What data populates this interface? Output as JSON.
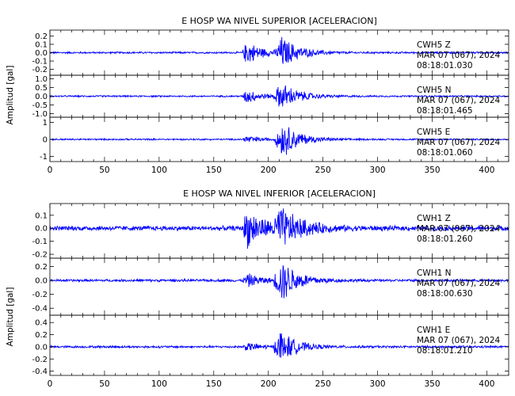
{
  "figure": {
    "ylabel": "Amplitud [gal]",
    "trace_color": "#0000ff"
  },
  "chart_data": [
    {
      "type": "line",
      "title": "E HOSP WA NIVEL SUPERIOR [ACELERACION]",
      "ylabel": "Amplitud [gal]",
      "xlim": [
        0,
        420
      ],
      "x_ticks": [
        0,
        50,
        100,
        150,
        200,
        250,
        300,
        350,
        400
      ],
      "panels": [
        {
          "name": "CWH5 Z",
          "station": "CWH5",
          "component": "Z",
          "date_label": "MAR 07 (067), 2024",
          "time_label": "08:18:01.030",
          "ylim": [
            -0.27,
            0.27
          ],
          "y_ticks": [
            0.2,
            0.1,
            0.0,
            -0.1,
            -0.2
          ],
          "y_tick_labels": [
            "0.2",
            "0.1",
            "0.0",
            "-0.1",
            "-0.2"
          ],
          "noise_amp": 0.012,
          "bursts": [
            {
              "t0": 176,
              "peak": 180,
              "decay": 14,
              "amp": 0.16
            },
            {
              "t0": 206,
              "peak": 212,
              "decay": 16,
              "amp": 0.2
            }
          ]
        },
        {
          "name": "CWH5 N",
          "station": "CWH5",
          "component": "N",
          "date_label": "MAR 07 (067), 2024",
          "time_label": "08:18:01.465",
          "ylim": [
            -1.2,
            1.2
          ],
          "y_ticks": [
            1.0,
            0.5,
            0.0,
            -0.5,
            -1.0
          ],
          "y_tick_labels": [
            "1.0",
            "0.5",
            "0.0",
            "-0.5",
            "-1.0"
          ],
          "noise_amp": 0.05,
          "bursts": [
            {
              "t0": 176,
              "peak": 180,
              "decay": 13,
              "amp": 0.45
            },
            {
              "t0": 204,
              "peak": 212,
              "decay": 16,
              "amp": 0.85
            }
          ]
        },
        {
          "name": "CWH5 E",
          "station": "CWH5",
          "component": "E",
          "date_label": "MAR 07 (067), 2024",
          "time_label": "08:18:01.060",
          "ylim": [
            -1.3,
            1.3
          ],
          "y_ticks": [
            1,
            0,
            -1
          ],
          "y_tick_labels": [
            "1",
            "0",
            "-1"
          ],
          "noise_amp": 0.05,
          "bursts": [
            {
              "t0": 176,
              "peak": 180,
              "decay": 12,
              "amp": 0.25
            },
            {
              "t0": 205,
              "peak": 213,
              "decay": 15,
              "amp": 1.15
            }
          ]
        }
      ]
    },
    {
      "type": "line",
      "title": "E HOSP WA NIVEL INFERIOR [ACELERACION]",
      "ylabel": "Amplitud [gal]",
      "xlim": [
        0,
        420
      ],
      "x_ticks": [
        0,
        50,
        100,
        150,
        200,
        250,
        300,
        350,
        400
      ],
      "panels": [
        {
          "name": "CWH1 Z",
          "station": "CWH1",
          "component": "Z",
          "date_label": "MAR 07 (067), 2024",
          "time_label": "08:18:01.260",
          "ylim": [
            -0.23,
            0.19
          ],
          "y_ticks": [
            0.1,
            0.0,
            -0.1,
            -0.2
          ],
          "y_tick_labels": [
            "0.1",
            "0.0",
            "-0.1",
            "-0.2"
          ],
          "noise_amp": 0.02,
          "bursts": [
            {
              "t0": 176,
              "peak": 180,
              "decay": 18,
              "amp": 0.16
            },
            {
              "t0": 203,
              "peak": 211,
              "decay": 20,
              "amp": 0.15
            }
          ]
        },
        {
          "name": "CWH1 N",
          "station": "CWH1",
          "component": "N",
          "date_label": "MAR 07 (067), 2024",
          "time_label": "08:18:00.630",
          "ylim": [
            -0.5,
            0.32
          ],
          "y_ticks": [
            0.2,
            0.0,
            -0.2,
            -0.4
          ],
          "y_tick_labels": [
            "0.2",
            "0.0",
            "-0.2",
            "-0.4"
          ],
          "noise_amp": 0.02,
          "bursts": [
            {
              "t0": 176,
              "peak": 181,
              "decay": 14,
              "amp": 0.1
            },
            {
              "t0": 204,
              "peak": 212,
              "decay": 16,
              "amp": 0.33
            }
          ]
        },
        {
          "name": "CWH1 E",
          "station": "CWH1",
          "component": "E",
          "date_label": "MAR 07 (067), 2024",
          "time_label": "08:18:01.210",
          "ylim": [
            -0.47,
            0.52
          ],
          "y_ticks": [
            0.4,
            0.2,
            0.0,
            -0.2,
            -0.4
          ],
          "y_tick_labels": [
            "0.4",
            "0.2",
            "0.0",
            "-0.2",
            "-0.4"
          ],
          "noise_amp": 0.02,
          "bursts": [
            {
              "t0": 176,
              "peak": 181,
              "decay": 13,
              "amp": 0.07
            },
            {
              "t0": 204,
              "peak": 211,
              "decay": 14,
              "amp": 0.3
            }
          ]
        }
      ]
    }
  ]
}
